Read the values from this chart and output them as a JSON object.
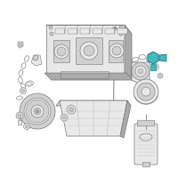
{
  "bg_color": "#ffffff",
  "highlight_color": "#4ab8c1",
  "line_color": "#888888",
  "dark_color": "#666666",
  "parts_color": "#e8e8e8",
  "parts_dark": "#aaaaaa",
  "shadow": "#d0d0d0",
  "outline": "#777777"
}
